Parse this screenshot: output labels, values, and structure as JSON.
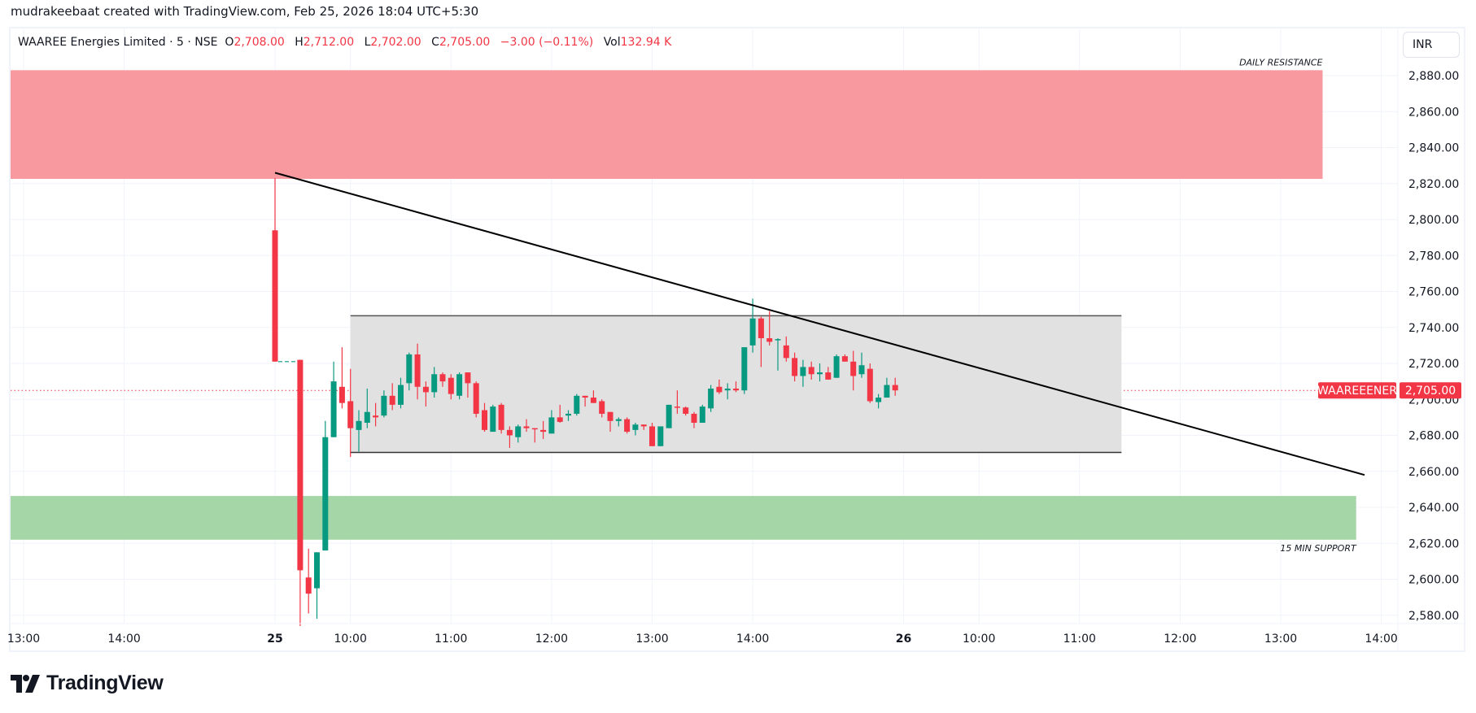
{
  "credit": "mudrakeebaat created with TradingView.com, Feb 25, 2026 18:04 UTC+5:30",
  "legend": {
    "symbol": "WAAREE Energies Limited · 5 · NSE",
    "o_label": "O",
    "o": "2,708.00",
    "h_label": "H",
    "h": "2,712.00",
    "l_label": "L",
    "l": "2,702.00",
    "c_label": "C",
    "c": "2,705.00",
    "change": "−3.00 (−0.11%)",
    "vol_label": "Vol",
    "vol": "132.94 K"
  },
  "currency_button": "INR",
  "logo_text": "TradingView",
  "colors": {
    "up": "#089981",
    "down": "#f23645",
    "resistance_zone": "#f7999f",
    "support_zone": "#a5d6a7",
    "range_box": "#e1e1e1",
    "trendline": "#000000"
  },
  "chart_data": {
    "type": "candlestick",
    "interval": "5",
    "ylim": [
      2560,
      2884
    ],
    "grid": true,
    "yticks": [
      "2,580.00",
      "2,600.00",
      "2,620.00",
      "2,640.00",
      "2,660.00",
      "2,680.00",
      "2,700.00",
      "2,720.00",
      "2,740.00",
      "2,760.00",
      "2,780.00",
      "2,800.00",
      "2,820.00",
      "2,840.00",
      "2,860.00",
      "2,880.00"
    ],
    "ytick_values": [
      2580,
      2600,
      2620,
      2640,
      2660,
      2680,
      2700,
      2720,
      2740,
      2760,
      2780,
      2800,
      2820,
      2840,
      2860,
      2880
    ],
    "xticks": [
      {
        "t": "24 13:00",
        "label": "13:00",
        "bold": false
      },
      {
        "t": "24 14:00",
        "label": "14:00",
        "bold": false
      },
      {
        "t": "25 09:15",
        "label": "25",
        "bold": true
      },
      {
        "t": "25 10:00",
        "label": "10:00",
        "bold": false
      },
      {
        "t": "25 11:00",
        "label": "11:00",
        "bold": false
      },
      {
        "t": "25 12:00",
        "label": "12:00",
        "bold": false
      },
      {
        "t": "25 13:00",
        "label": "13:00",
        "bold": false
      },
      {
        "t": "25 14:00",
        "label": "14:00",
        "bold": false
      },
      {
        "t": "26 09:15",
        "label": "26",
        "bold": true
      },
      {
        "t": "26 10:00",
        "label": "10:00",
        "bold": false
      },
      {
        "t": "26 11:00",
        "label": "11:00",
        "bold": false
      },
      {
        "t": "26 12:00",
        "label": "12:00",
        "bold": false
      },
      {
        "t": "26 13:00",
        "label": "13:00",
        "bold": false
      },
      {
        "t": "26 14:00",
        "label": "14:00",
        "bold": false
      }
    ],
    "candles": [
      [
        "25 09:15",
        2794,
        2823,
        2721,
        2721
      ],
      [
        "25 09:30",
        2722,
        2722,
        2574,
        2605
      ],
      [
        "25 09:35",
        2601,
        2617,
        2581,
        2592
      ],
      [
        "25 09:40",
        2595,
        2615,
        2578,
        2615
      ],
      [
        "25 09:45",
        2616,
        2688,
        2616,
        2679
      ],
      [
        "25 09:50",
        2679,
        2721,
        2679,
        2710
      ],
      [
        "25 09:55",
        2707,
        2729,
        2695,
        2698
      ],
      [
        "25 10:00",
        2699,
        2717,
        2668,
        2684
      ],
      [
        "25 10:05",
        2683,
        2694,
        2671,
        2688
      ],
      [
        "25 10:10",
        2687,
        2706,
        2684,
        2693
      ],
      [
        "25 10:15",
        2691,
        2698,
        2685,
        2690
      ],
      [
        "25 10:20",
        2691,
        2705,
        2690,
        2702
      ],
      [
        "25 10:25",
        2702,
        2709,
        2694,
        2697
      ],
      [
        "25 10:30",
        2697,
        2712,
        2695,
        2708
      ],
      [
        "25 10:35",
        2709,
        2726,
        2705,
        2725
      ],
      [
        "25 10:40",
        2725,
        2731,
        2700,
        2707
      ],
      [
        "25 10:45",
        2707,
        2710,
        2696,
        2704
      ],
      [
        "25 10:50",
        2704,
        2718,
        2701,
        2714
      ],
      [
        "25 10:55",
        2714,
        2715,
        2707,
        2710
      ],
      [
        "25 11:00",
        2712,
        2714,
        2700,
        2703
      ],
      [
        "25 11:05",
        2702,
        2715,
        2700,
        2714
      ],
      [
        "25 11:10",
        2715,
        2715,
        2701,
        2709
      ],
      [
        "25 11:15",
        2709,
        2710,
        2690,
        2692
      ],
      [
        "25 11:20",
        2694,
        2698,
        2682,
        2683
      ],
      [
        "25 11:25",
        2682,
        2697,
        2682,
        2696
      ],
      [
        "25 11:30",
        2697,
        2698,
        2681,
        2683
      ],
      [
        "25 11:35",
        2683,
        2685,
        2673,
        2680
      ],
      [
        "25 11:40",
        2679,
        2686,
        2676,
        2685
      ],
      [
        "25 11:45",
        2685,
        2689,
        2682,
        2684
      ],
      [
        "25 11:50",
        2684,
        2684,
        2676,
        2683.5
      ],
      [
        "25 11:55",
        2683,
        2688,
        2678,
        2682
      ],
      [
        "25 12:00",
        2681,
        2694,
        2681,
        2690
      ],
      [
        "25 12:05",
        2690,
        2697,
        2687,
        2687.5
      ],
      [
        "25 12:10",
        2691,
        2694,
        2688,
        2692
      ],
      [
        "25 12:15",
        2692,
        2703,
        2691,
        2702
      ],
      [
        "25 12:20",
        2702,
        2702,
        2696,
        2701
      ],
      [
        "25 12:25",
        2701,
        2705,
        2698,
        2698
      ],
      [
        "25 12:30",
        2699,
        2700,
        2690,
        2692
      ],
      [
        "25 12:35",
        2693,
        2693,
        2682,
        2688
      ],
      [
        "25 12:40",
        2688,
        2690,
        2685,
        2689
      ],
      [
        "25 12:45",
        2689,
        2690,
        2681,
        2682
      ],
      [
        "25 12:50",
        2683,
        2687,
        2680,
        2686
      ],
      [
        "25 12:55",
        2686,
        2686,
        2683,
        2685
      ],
      [
        "25 13:00",
        2685,
        2687,
        2674,
        2674
      ],
      [
        "25 13:05",
        2674,
        2685,
        2674,
        2685
      ],
      [
        "25 13:10",
        2684,
        2697,
        2684,
        2697
      ],
      [
        "25 13:15",
        2696,
        2705,
        2692,
        2695.5
      ],
      [
        "25 13:20",
        2695.5,
        2696,
        2691,
        2692
      ],
      [
        "25 13:25",
        2692,
        2693,
        2684,
        2687
      ],
      [
        "25 13:30",
        2687,
        2697,
        2687,
        2696
      ],
      [
        "25 13:35",
        2695,
        2708,
        2693,
        2706
      ],
      [
        "25 13:40",
        2707,
        2711,
        2703,
        2704
      ],
      [
        "25 13:45",
        2705,
        2709,
        2700,
        2706
      ],
      [
        "25 13:50",
        2706,
        2710,
        2704,
        2705
      ],
      [
        "25 13:55",
        2705,
        2729,
        2703,
        2729
      ],
      [
        "25 14:00",
        2730,
        2756,
        2726,
        2745
      ],
      [
        "25 14:05",
        2745,
        2746,
        2718,
        2734
      ],
      [
        "25 14:10",
        2734,
        2749,
        2730,
        2732
      ],
      [
        "25 14:15",
        2733,
        2734,
        2716,
        2733.5
      ],
      [
        "25 14:20",
        2730,
        2735,
        2721,
        2723
      ],
      [
        "25 14:25",
        2723,
        2726,
        2710,
        2713
      ],
      [
        "25 14:30",
        2713,
        2722,
        2707,
        2718
      ],
      [
        "25 14:35",
        2718,
        2721,
        2711,
        2714
      ],
      [
        "25 14:40",
        2714,
        2720,
        2710,
        2715
      ],
      [
        "25 14:45",
        2715,
        2718,
        2711,
        2711
      ],
      [
        "25 14:50",
        2712,
        2725,
        2712,
        2724
      ],
      [
        "25 14:55",
        2724,
        2725,
        2721,
        2721
      ],
      [
        "25 15:00",
        2721,
        2727,
        2705,
        2713
      ],
      [
        "25 15:05",
        2714,
        2726,
        2712,
        2719
      ],
      [
        "25 15:10",
        2717,
        2720,
        2698,
        2699
      ],
      [
        "25 15:15",
        2698.5,
        2703,
        2695,
        2701
      ],
      [
        "25 15:20",
        2701,
        2712,
        2701,
        2708
      ],
      [
        "25 15:25",
        2708,
        2712,
        2702,
        2705
      ]
    ],
    "last_price": {
      "symbol_label": "WAAREEENER",
      "value": 2705,
      "value_label": "2,705.00"
    },
    "drawings": {
      "resistance_zone": {
        "label": "DAILY RESISTANCE",
        "from": "left-edge",
        "to": "26 13:25",
        "top": 2883,
        "bottom": 2822.6
      },
      "support_zone": {
        "label": "15 MIN SUPPORT",
        "from": "left-edge",
        "to": "26 13:45",
        "top": 2646.3,
        "bottom": 2622
      },
      "range_box": {
        "from": "25 10:00",
        "to": "26 11:25",
        "top": 2746.5,
        "bottom": 2670.5
      },
      "trendline": {
        "from": "25 09:15",
        "from_price": 2826,
        "to": "26 13:50",
        "to_price": 2658
      }
    }
  }
}
